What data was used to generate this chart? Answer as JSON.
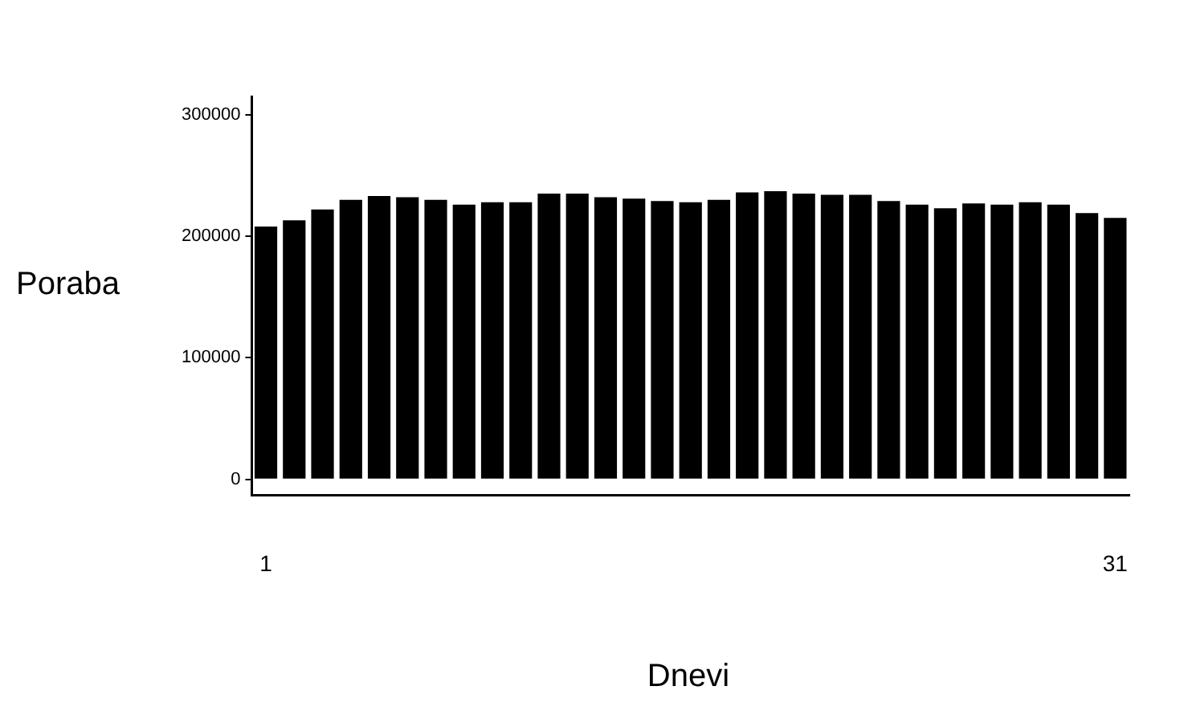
{
  "chart_data": {
    "type": "bar",
    "xlabel": "Dnevi",
    "ylabel": "Poraba",
    "categories": [
      "1",
      null,
      null,
      null,
      null,
      null,
      null,
      null,
      null,
      null,
      null,
      null,
      null,
      null,
      null,
      null,
      null,
      null,
      null,
      null,
      null,
      null,
      null,
      null,
      null,
      null,
      null,
      null,
      null,
      null,
      "31"
    ],
    "values": [
      208000,
      213000,
      222000,
      230000,
      233000,
      232000,
      230000,
      226000,
      228000,
      228000,
      235000,
      235000,
      232000,
      231000,
      229000,
      228000,
      230000,
      236000,
      237000,
      235000,
      234000,
      234000,
      229000,
      226000,
      223000,
      227000,
      226000,
      228000,
      226000,
      219000,
      215000
    ],
    "color": "#000000",
    "ylim": [
      -13000,
      315000
    ],
    "yticks": [
      0,
      100000,
      200000,
      300000
    ],
    "grid": false,
    "legend": false
  }
}
